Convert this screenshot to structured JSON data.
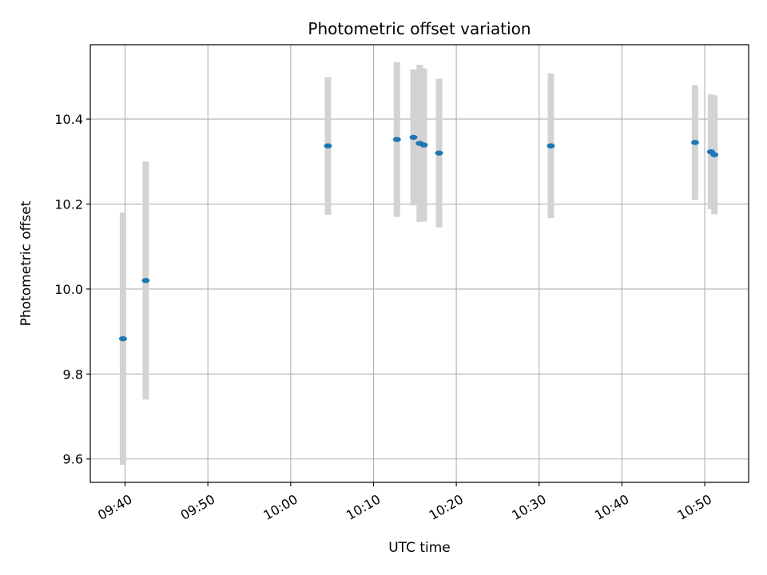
{
  "chart_data": {
    "type": "scatter",
    "title": "Photometric offset variation",
    "xlabel": "UTC time",
    "ylabel": "Photometric offset",
    "x_tick_labels": [
      "09:40",
      "09:50",
      "10:00",
      "10:10",
      "10:20",
      "10:30",
      "10:40",
      "10:50"
    ],
    "x_tick_minutes": [
      580,
      590,
      600,
      610,
      620,
      630,
      640,
      650
    ],
    "xlim_minutes": [
      575.8,
      655.3
    ],
    "ylim": [
      9.545,
      10.575
    ],
    "y_ticks": [
      9.6,
      9.8,
      10.0,
      10.2,
      10.4
    ],
    "y_tick_labels": [
      "9.6",
      "9.8",
      "10.0",
      "10.2",
      "10.4"
    ],
    "grid": true,
    "colors": {
      "point": "#1f77b4",
      "errorbar": "#d3d3d3",
      "grid": "#b0b0b0"
    },
    "points": [
      {
        "t": "09:39:45",
        "m": 579.75,
        "y": 9.883,
        "err": 0.297
      },
      {
        "t": "09:42:30",
        "m": 582.5,
        "y": 10.02,
        "err": 0.28
      },
      {
        "t": "10:04:30",
        "m": 604.5,
        "y": 10.337,
        "err": 0.162
      },
      {
        "t": "10:12:50",
        "m": 612.83,
        "y": 10.352,
        "err": 0.182
      },
      {
        "t": "10:14:50",
        "m": 614.83,
        "y": 10.357,
        "err": 0.16
      },
      {
        "t": "10:15:35",
        "m": 615.58,
        "y": 10.343,
        "err": 0.185
      },
      {
        "t": "10:16:05",
        "m": 616.08,
        "y": 10.339,
        "err": 0.18
      },
      {
        "t": "10:17:55",
        "m": 617.92,
        "y": 10.32,
        "err": 0.175
      },
      {
        "t": "10:31:25",
        "m": 631.42,
        "y": 10.337,
        "err": 0.17
      },
      {
        "t": "10:48:50",
        "m": 648.83,
        "y": 10.345,
        "err": 0.135
      },
      {
        "t": "10:50:45",
        "m": 650.75,
        "y": 10.323,
        "err": 0.135
      },
      {
        "t": "10:51:10",
        "m": 651.17,
        "y": 10.316,
        "err": 0.14
      }
    ]
  }
}
